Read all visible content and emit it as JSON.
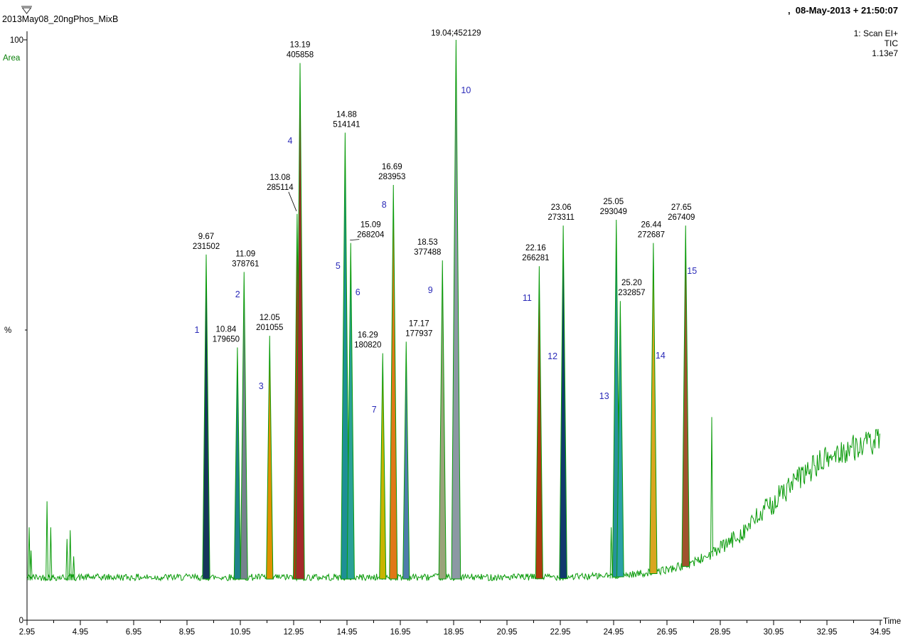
{
  "header": {
    "sample_name": "2013May08_20ngPhos_MixB",
    "acquired": ",  08-May-2013 + 21:50:07",
    "scan_label": "1: Scan EI+",
    "signal_label": "TIC",
    "intensity_label": "1.13e7"
  },
  "colors": {
    "trace": "#0a9b0a",
    "green_text": "#0b800b",
    "blue_text": "#2222cc",
    "peak_number": "#2a2ab8",
    "axis": "#000000",
    "label": "#000000"
  },
  "chart_data": {
    "type": "line",
    "xlabel": "Time",
    "area_label": "Area",
    "y_axis": {
      "top": "100",
      "bottom": "0",
      "unit": "%"
    },
    "xlim": [
      2.95,
      34.95
    ],
    "ylim": [
      0,
      100
    ],
    "x_tick_labels": [
      "2.95",
      "4.95",
      "6.95",
      "8.95",
      "10.95",
      "12.95",
      "14.95",
      "16.95",
      "18.95",
      "20.95",
      "22.95",
      "24.95",
      "26.95",
      "28.95",
      "30.95",
      "32.95",
      "34.95"
    ],
    "baseline_pct": 7.4,
    "hump": {
      "center": 30.8,
      "width": 1.35,
      "height": 24.5
    },
    "noise": {
      "base_amp": 0.6,
      "hump_amp": 2.3
    },
    "minor_peaks": [
      {
        "t": 3.03,
        "pct": 16
      },
      {
        "t": 3.1,
        "pct": 12
      },
      {
        "t": 3.7,
        "pct": 20.5
      },
      {
        "t": 3.84,
        "pct": 16
      },
      {
        "t": 4.45,
        "pct": 14
      },
      {
        "t": 4.57,
        "pct": 15.5
      },
      {
        "t": 4.7,
        "pct": 11
      },
      {
        "t": 24.86,
        "pct": 16
      },
      {
        "t": 28.63,
        "pct": 35
      }
    ],
    "peaks": [
      {
        "rt": "9.67",
        "area": "231502",
        "t": 9.67,
        "pct": 63,
        "num": "1",
        "color": "#16365c",
        "ldx": 0,
        "ndx": -13,
        "ny": 468
      },
      {
        "rt": "10.84",
        "area": "179650",
        "t": 10.84,
        "pct": 47,
        "color": "#20808c",
        "ldx": -16
      },
      {
        "rt": "11.09",
        "area": "378761",
        "t": 11.09,
        "pct": 60,
        "num": "2",
        "color": "#76828e",
        "ldx": 2,
        "ndx": -9,
        "ny": 418
      },
      {
        "rt": "12.05",
        "area": "201055",
        "t": 12.05,
        "pct": 49,
        "num": "3",
        "color": "#e09000",
        "ldx": 0,
        "ndx": -12,
        "ny": 547
      },
      {
        "rt": "13.08",
        "area": "285114",
        "t": 13.08,
        "pct": 70,
        "color": "#c03010",
        "ldx": -24,
        "raise": 26,
        "leader": true
      },
      {
        "rt": "13.19",
        "area": "405858",
        "t": 13.19,
        "pct": 96,
        "num": "4",
        "color": "#a52a2a",
        "ldx": 0,
        "ndx": -14,
        "ny": 202
      },
      {
        "rt": "14.88",
        "area": "514141",
        "t": 14.88,
        "pct": 84,
        "num": "5",
        "color": "#1e8f96",
        "ldx": 2,
        "ndx": -10,
        "ny": 378
      },
      {
        "rt": "15.09",
        "area": "268204",
        "t": 15.09,
        "pct": 65,
        "num": "6",
        "color": "#2aa198",
        "ldx": 28,
        "leader": true,
        "ndx": 10,
        "ny": 415
      },
      {
        "rt": "16.29",
        "area": "180820",
        "t": 16.29,
        "pct": 46,
        "num": "7",
        "color": "#c8b400",
        "ldx": -21,
        "ndx": -12,
        "ny": 580
      },
      {
        "rt": "16.69",
        "area": "283953",
        "t": 16.69,
        "pct": 75,
        "num": "8",
        "color": "#e07818",
        "ldx": -2,
        "ndx": -13,
        "ny": 292
      },
      {
        "rt": "17.17",
        "area": "177937",
        "t": 17.17,
        "pct": 48,
        "color": "#4f7cac",
        "ldx": 18
      },
      {
        "rt": "18.53",
        "area": "377488",
        "t": 18.53,
        "pct": 62,
        "num": "9",
        "color": "#9aa37a",
        "ldx": -21,
        "ndx": -17,
        "ny": 412
      },
      {
        "rt": "19.04",
        "area": "452129",
        "t": 19.04,
        "pct": 100,
        "num": "10",
        "color": "#8c98a4",
        "one_line": "19.04;452129",
        "ldx": 0,
        "ndx": 14,
        "ny": 131
      },
      {
        "rt": "22.16",
        "area": "266281",
        "t": 22.16,
        "pct": 61,
        "num": "11",
        "color": "#b03a10",
        "ldx": -5,
        "ndx": -17,
        "ny": 423
      },
      {
        "rt": "23.06",
        "area": "273311",
        "t": 23.06,
        "pct": 68,
        "num": "12",
        "color": "#123a6e",
        "ldx": -3,
        "ndx": -15,
        "ny": 505
      },
      {
        "rt": "25.05",
        "area": "293049",
        "t": 25.05,
        "pct": 69,
        "num": "13",
        "color": "#27919b",
        "ldx": -4,
        "ndx": -17,
        "ny": 561
      },
      {
        "rt": "25.20",
        "area": "232857",
        "t": 25.2,
        "pct": 55,
        "color": "#2ba0a8",
        "ldx": 16
      },
      {
        "rt": "26.44",
        "area": "272687",
        "t": 26.44,
        "pct": 65,
        "num": "14",
        "color": "#d9a520",
        "ldx": -3,
        "ndx": 10,
        "ny": 504
      },
      {
        "rt": "27.65",
        "area": "267409",
        "t": 27.65,
        "pct": 68,
        "num": "15",
        "color": "#a0522d",
        "ldx": -6,
        "ndx": 9,
        "ny": 385
      }
    ]
  }
}
